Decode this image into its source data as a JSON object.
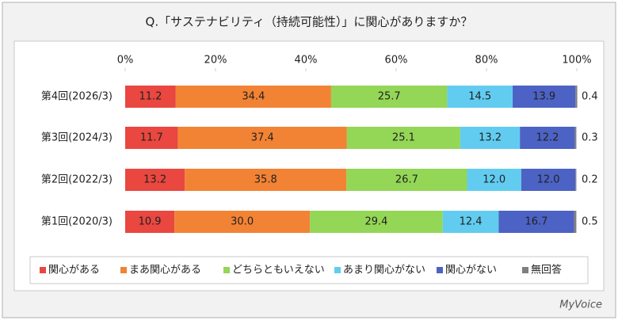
{
  "chart_data": {
    "type": "stacked-bar-horizontal",
    "title": "Q.「サステナビリティ（持続可能性）」に関心がありますか？",
    "footer": "MyVoice",
    "categories": [
      "第4回(2026/3)",
      "第3回(2024/3)",
      "第2回(2022/3)",
      "第1回(2020/3)"
    ],
    "xlim": [
      0,
      100
    ],
    "xticks": [
      {
        "value": 0,
        "label": "0%"
      },
      {
        "value": 20,
        "label": "20%"
      },
      {
        "value": 40,
        "label": "40%"
      },
      {
        "value": 60,
        "label": "60%"
      },
      {
        "value": 80,
        "label": "80%"
      },
      {
        "value": 100,
        "label": "100%"
      }
    ],
    "series": [
      {
        "name": "関心がある",
        "color": "#e9473f",
        "values": [
          11.2,
          11.7,
          13.2,
          10.9
        ],
        "value_labels": [
          "11.2",
          "11.7",
          "13.2",
          "10.9"
        ]
      },
      {
        "name": "まあ関心がある",
        "color": "#f28335",
        "values": [
          34.4,
          37.4,
          35.8,
          30.0
        ],
        "value_labels": [
          "34.4",
          "37.4",
          "35.8",
          "30.0"
        ]
      },
      {
        "name": "どちらともいえない",
        "color": "#94d656",
        "values": [
          25.7,
          25.1,
          26.7,
          29.4
        ],
        "value_labels": [
          "25.7",
          "25.1",
          "26.7",
          "29.4"
        ]
      },
      {
        "name": "あまり関心がない",
        "color": "#62ccf0",
        "values": [
          14.5,
          13.2,
          12.0,
          12.4
        ],
        "value_labels": [
          "14.5",
          "13.2",
          "12.0",
          "12.4"
        ]
      },
      {
        "name": "関心がない",
        "color": "#4c62c4",
        "values": [
          13.9,
          12.2,
          12.0,
          16.7
        ],
        "value_labels": [
          "13.9",
          "12.2",
          "12.0",
          "16.7"
        ]
      },
      {
        "name": "無回答",
        "color": "#7f7f7f",
        "values": [
          0.4,
          0.3,
          0.2,
          0.5
        ],
        "value_labels": [
          "0.4",
          "0.3",
          "0.2",
          "0.5"
        ]
      }
    ]
  }
}
